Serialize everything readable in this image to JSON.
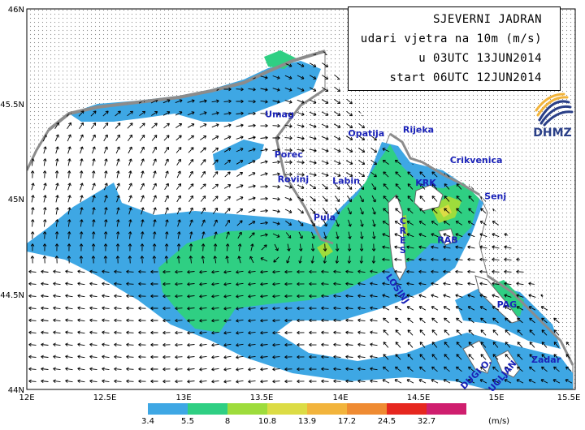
{
  "title": {
    "line1": "SJEVERNI JADRAN",
    "line2": "udari vjetra na 10m (m/s)",
    "line3": "u 03UTC 13JUN2014",
    "line4": "start 06UTC 12JUN2014"
  },
  "logo": {
    "text": "DHMZ",
    "icon": "dhmz-swirl-icon"
  },
  "axes": {
    "lon_ticks": [
      "12E",
      "12.5E",
      "13E",
      "13.5E",
      "14E",
      "14.5E",
      "15E",
      "15.5E"
    ],
    "lat_ticks": [
      "46N",
      "45.5N",
      "45N",
      "44.5N",
      "44N"
    ],
    "lon_range": [
      12,
      15.5
    ],
    "lat_range": [
      44,
      46
    ]
  },
  "places": [
    {
      "name": "Umag",
      "lon": 13.52,
      "lat": 45.43
    },
    {
      "name": "Porec",
      "lon": 13.58,
      "lat": 45.22
    },
    {
      "name": "Rovinj",
      "lon": 13.6,
      "lat": 45.09
    },
    {
      "name": "Labin",
      "lon": 13.95,
      "lat": 45.08
    },
    {
      "name": "Opatija",
      "lon": 14.05,
      "lat": 45.33
    },
    {
      "name": "Rijeka",
      "lon": 14.4,
      "lat": 45.35
    },
    {
      "name": "Crikvenica",
      "lon": 14.7,
      "lat": 45.19
    },
    {
      "name": "KRK",
      "lon": 14.48,
      "lat": 45.07
    },
    {
      "name": "Senj",
      "lon": 14.92,
      "lat": 45.0
    },
    {
      "name": "Pula",
      "lon": 13.83,
      "lat": 44.89
    },
    {
      "name": "RAB",
      "lon": 14.62,
      "lat": 44.77
    },
    {
      "name": "PAG",
      "lon": 15.0,
      "lat": 44.43
    },
    {
      "name": "Zadar",
      "lon": 15.22,
      "lat": 44.14
    }
  ],
  "vertical_labels": [
    {
      "text": "CRES",
      "lon": 14.4,
      "lat": 44.87
    }
  ],
  "rotated_labels": [
    {
      "text": "LOSINJ",
      "lon": 14.35,
      "lat": 44.52,
      "angle": 55
    },
    {
      "text": "UGLJAN",
      "lon": 15.05,
      "lat": 44.06,
      "angle": -50
    },
    {
      "text": "DUGI O.",
      "lon": 14.88,
      "lat": 44.07,
      "angle": -45
    }
  ],
  "colorbar": {
    "levels": [
      "3.4",
      "5.5",
      "8",
      "10.8",
      "13.9",
      "17.2",
      "24.5",
      "32.7"
    ],
    "colors": [
      "#3ea7e4",
      "#2fcf83",
      "#9edc3c",
      "#dcdc45",
      "#f2b43c",
      "#ef8b32",
      "#e6271f",
      "#cf1e6e"
    ],
    "unit": "(m/s)"
  },
  "legend_colors": {
    "land": "#ffffff",
    "landmass_gray": "#8c8c8c",
    "calm_sea": "#ffffff",
    "band_3_4": "#3ea7e4",
    "band_5_5": "#2fcf83",
    "band_8": "#9edc3c",
    "band_10_8": "#dcdc45",
    "place_label": "#1a22b8"
  }
}
